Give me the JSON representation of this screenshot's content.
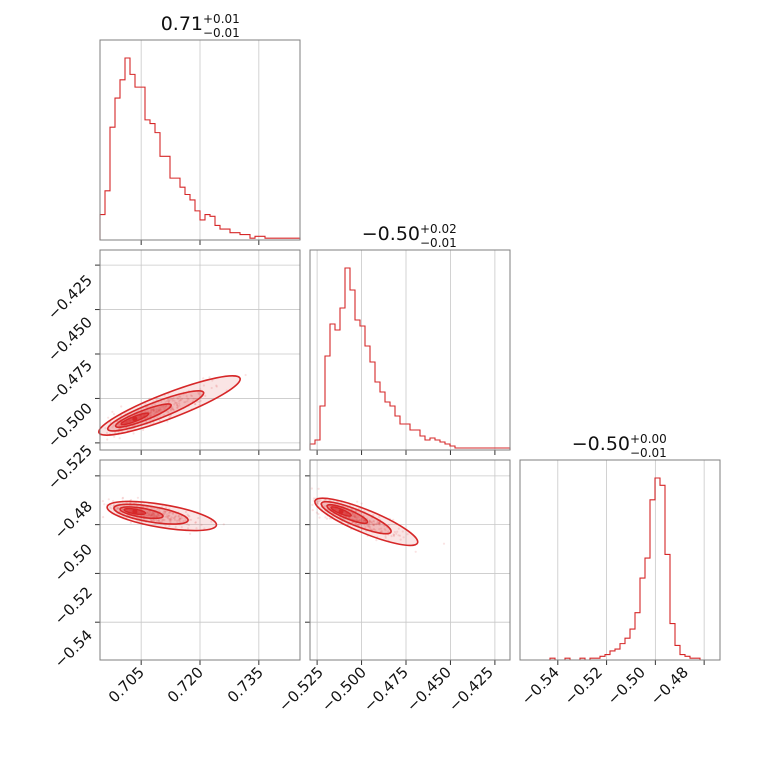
{
  "colors": {
    "accent": "#d62728",
    "grid": "#c8c8c8",
    "frame": "#7f7f7f"
  },
  "titles": [
    {
      "main": "0.71",
      "sup": "+0.01",
      "sub": "−0.01"
    },
    {
      "main": "−0.50",
      "sup": "+0.02",
      "sub": "−0.01"
    },
    {
      "main": "−0.50",
      "sup": "+0.00",
      "sub": "−0.01"
    }
  ],
  "ticks": {
    "p0": [
      "0.705",
      "0.720",
      "0.735"
    ],
    "p1": [
      "−0.525",
      "−0.500",
      "−0.475",
      "−0.450",
      "−0.425"
    ],
    "p2": [
      "−0.54",
      "−0.52",
      "−0.50",
      "−0.48"
    ]
  },
  "chart_data": {
    "type": "corner",
    "params": 3,
    "ranges": [
      [
        0.6945,
        0.7455
      ],
      [
        -0.529,
        -0.4165
      ],
      [
        -0.5555,
        -0.4735
      ]
    ],
    "tick_values": [
      [
        0.705,
        0.72,
        0.735
      ],
      [
        -0.525,
        -0.5,
        -0.475,
        -0.45,
        -0.425
      ],
      [
        -0.54,
        -0.52,
        -0.5,
        -0.48
      ]
    ],
    "grid": true,
    "marginals": [
      {
        "param_index": 0,
        "bin_edges": [
          0.6945,
          0.7455
        ],
        "counts": [
          14,
          27,
          62,
          78,
          88,
          100,
          91,
          84,
          84,
          66,
          64,
          59,
          46,
          46,
          34,
          34,
          29,
          25,
          22,
          16,
          11,
          14,
          13,
          8,
          6,
          6,
          4,
          4,
          3,
          3,
          1,
          2,
          2,
          1,
          1,
          1,
          1,
          1,
          1,
          1
        ]
      },
      {
        "param_index": 1,
        "bin_edges": [
          -0.529,
          -0.4165
        ],
        "counts": [
          3,
          5,
          22,
          47,
          63,
          60,
          71,
          91,
          80,
          65,
          62,
          52,
          44,
          34,
          29,
          24,
          22,
          17,
          13,
          13,
          10,
          10,
          7,
          5,
          6,
          5,
          4,
          3,
          2,
          1,
          1,
          1,
          1,
          1,
          1,
          1,
          1,
          1,
          1,
          1
        ]
      },
      {
        "param_index": 2,
        "bin_edges": [
          -0.5555,
          -0.4735
        ],
        "counts": [
          0,
          0,
          0,
          0,
          0,
          0,
          1,
          0,
          0,
          1,
          0,
          0,
          1,
          0,
          1,
          1,
          2,
          3,
          5,
          6,
          9,
          12,
          17,
          26,
          45,
          56,
          88,
          100,
          96,
          58,
          20,
          8,
          3,
          2,
          1,
          1,
          0,
          0,
          0,
          0
        ]
      }
    ],
    "joints": [
      {
        "x_param": 0,
        "y_param": 1,
        "center": [
          0.7034,
          -0.5115
        ],
        "slope": 0.85
      },
      {
        "x_param": 0,
        "y_param": 2,
        "center": [
          0.7034,
          -0.4946
        ],
        "slope": -0.27
      },
      {
        "x_param": 1,
        "y_param": 2,
        "center": [
          -0.5115,
          -0.4946
        ],
        "slope": -0.3
      }
    ]
  }
}
